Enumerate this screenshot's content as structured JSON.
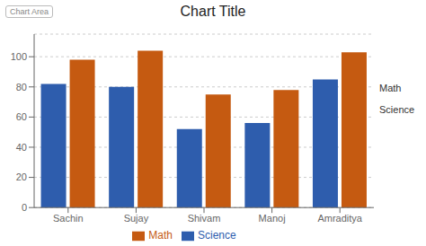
{
  "chart_data": {
    "type": "bar",
    "title": "Chart Title",
    "categories": [
      "Sachin",
      "Sujay",
      "Shivam",
      "Manoj",
      "Amraditya"
    ],
    "series": [
      {
        "name": "Science",
        "color": "#2E5DAD",
        "values": [
          82,
          80,
          52,
          56,
          85
        ]
      },
      {
        "name": "Math",
        "color": "#C55A11",
        "values": [
          98,
          104,
          75,
          78,
          103
        ]
      }
    ],
    "ylim": [
      0,
      115
    ],
    "yticks": [
      0,
      20,
      40,
      60,
      80,
      100
    ],
    "grid": true,
    "legend": "bottom",
    "annotations": [
      "Chart Area",
      "Math",
      "Science"
    ]
  }
}
